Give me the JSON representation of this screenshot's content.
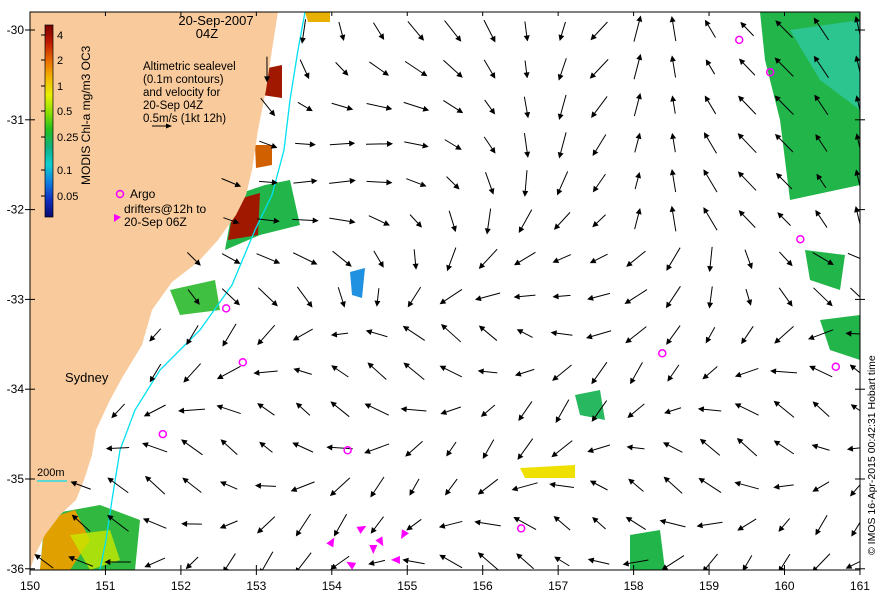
{
  "title": {
    "date": "20-Sep-2007",
    "time": "04Z"
  },
  "legend": {
    "lines": [
      "Altimetric sealevel",
      "(0.1m contours)",
      "and velocity for",
      "20-Sep 04Z",
      "0.5m/s (1kt 12h)"
    ],
    "argo_label": "Argo",
    "drifter_lines": [
      "drifters@12h to",
      "20-Sep 06Z"
    ]
  },
  "colorbar": {
    "label": "MODIS Chl-a mg/m3 OC3",
    "ticks": [
      "4",
      "2",
      "1",
      "0.5",
      "0.25",
      "0.1",
      "0.05"
    ],
    "colors": [
      "#7a0000",
      "#c01a00",
      "#e86a00",
      "#f5b400",
      "#e8f000",
      "#8fe000",
      "#20c020",
      "#10b080",
      "#10d0d0",
      "#1080e0",
      "#1030c0",
      "#0a0a70"
    ]
  },
  "axes": {
    "lon_ticks": [
      "150",
      "151",
      "152",
      "153",
      "154",
      "155",
      "156",
      "157",
      "158",
      "159",
      "160",
      "161"
    ],
    "lat_ticks": [
      "-30",
      "-31",
      "-32",
      "-33",
      "-34",
      "-35",
      "-36"
    ]
  },
  "labels": {
    "city": "Sydney",
    "isobath": "200m"
  },
  "credit": "© IMOS 16-Apr-2015 00:42:31 Hobart time",
  "colors": {
    "land": "#f9cb9c",
    "argo": "#ff00ff",
    "isobath": "#00e0f0",
    "arrow": "#000000"
  },
  "argo_floats": [
    {
      "lon": 159.4,
      "lat": -30.11
    },
    {
      "lon": 159.81,
      "lat": -30.47
    },
    {
      "lon": 160.21,
      "lat": -32.33
    },
    {
      "lon": 152.6,
      "lat": -33.1
    },
    {
      "lon": 152.82,
      "lat": -33.7
    },
    {
      "lon": 158.38,
      "lat": -33.6
    },
    {
      "lon": 160.68,
      "lat": -33.75
    },
    {
      "lon": 151.76,
      "lat": -34.5
    },
    {
      "lon": 154.21,
      "lat": -34.68
    },
    {
      "lon": 156.51,
      "lat": -35.55
    }
  ],
  "drifters": [
    {
      "lon": 154.0,
      "lat": -35.7,
      "dir": 60
    },
    {
      "lon": 154.4,
      "lat": -35.55,
      "dir": 30
    },
    {
      "lon": 154.65,
      "lat": -35.7,
      "dir": 300
    },
    {
      "lon": 154.55,
      "lat": -35.78,
      "dir": 270
    },
    {
      "lon": 154.95,
      "lat": -35.62,
      "dir": 240
    },
    {
      "lon": 154.85,
      "lat": -35.9,
      "dir": 180
    },
    {
      "lon": 154.25,
      "lat": -35.95,
      "dir": 150
    },
    {
      "lon": 154.1,
      "lat": -36.05,
      "dir": 120
    }
  ]
}
